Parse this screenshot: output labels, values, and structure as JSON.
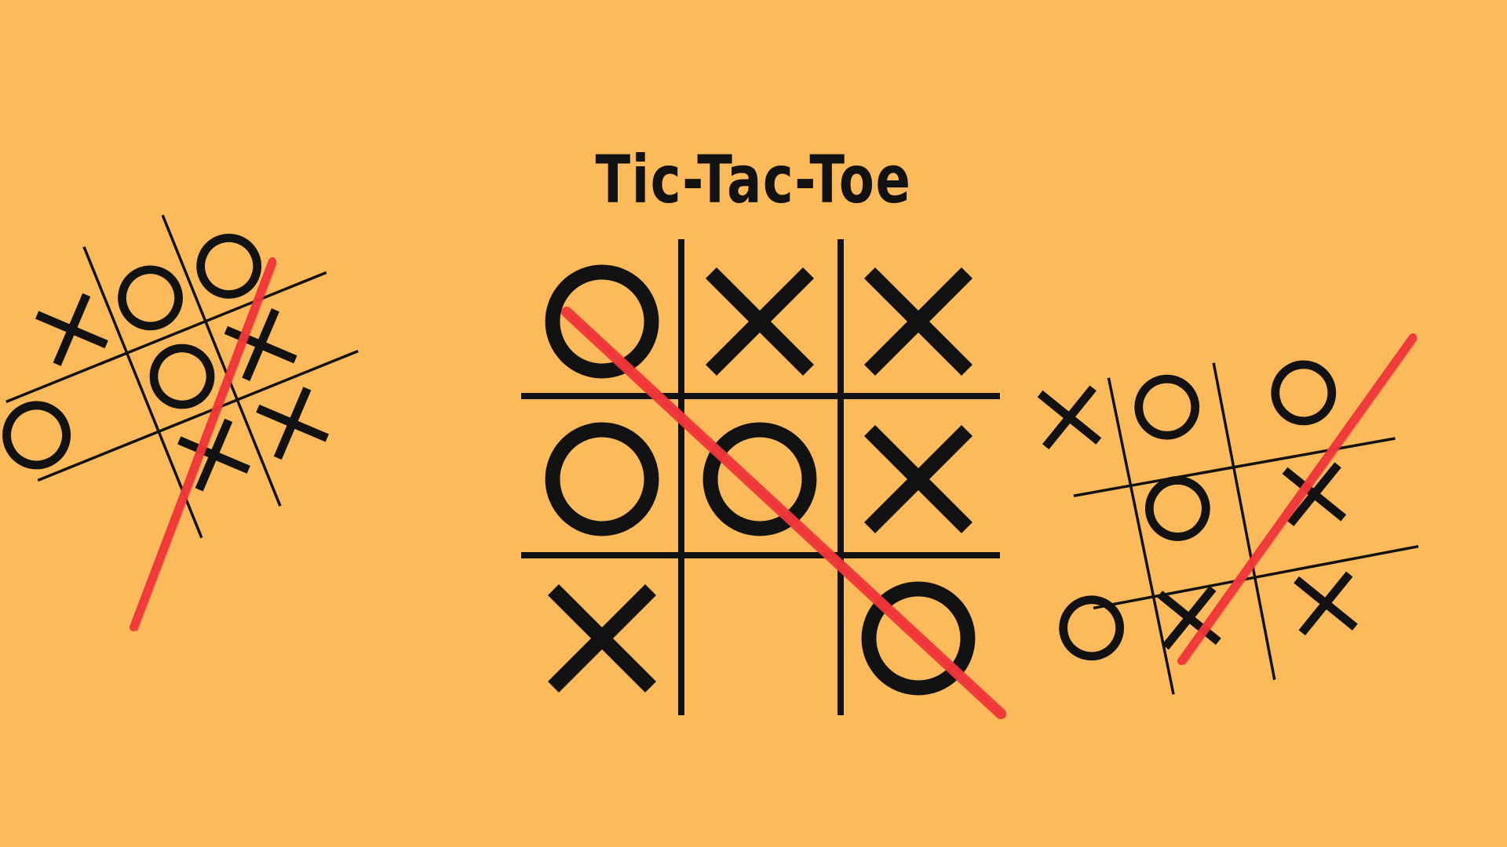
{
  "title": "Tic-Tac-Toe",
  "colors": {
    "background": "#FDBA5A",
    "ink": "#121212",
    "strike": "#F0363A"
  },
  "main_board": {
    "cells": [
      "O",
      "X",
      "X",
      "O",
      "O",
      "X",
      "X",
      "",
      "O"
    ],
    "winning_line": [
      0,
      4,
      8
    ]
  },
  "left_board": {
    "cells": [
      "X",
      "O",
      "O",
      "",
      "O",
      "X",
      "",
      "X",
      "X"
    ],
    "extra_marks": [
      "O"
    ],
    "winning_line": [
      2,
      4,
      6
    ]
  },
  "right_board": {
    "cells": [
      "X",
      "O",
      "O",
      "",
      "O",
      "X",
      "O",
      "X",
      "X"
    ],
    "winning_line": [
      2,
      4,
      6
    ]
  }
}
